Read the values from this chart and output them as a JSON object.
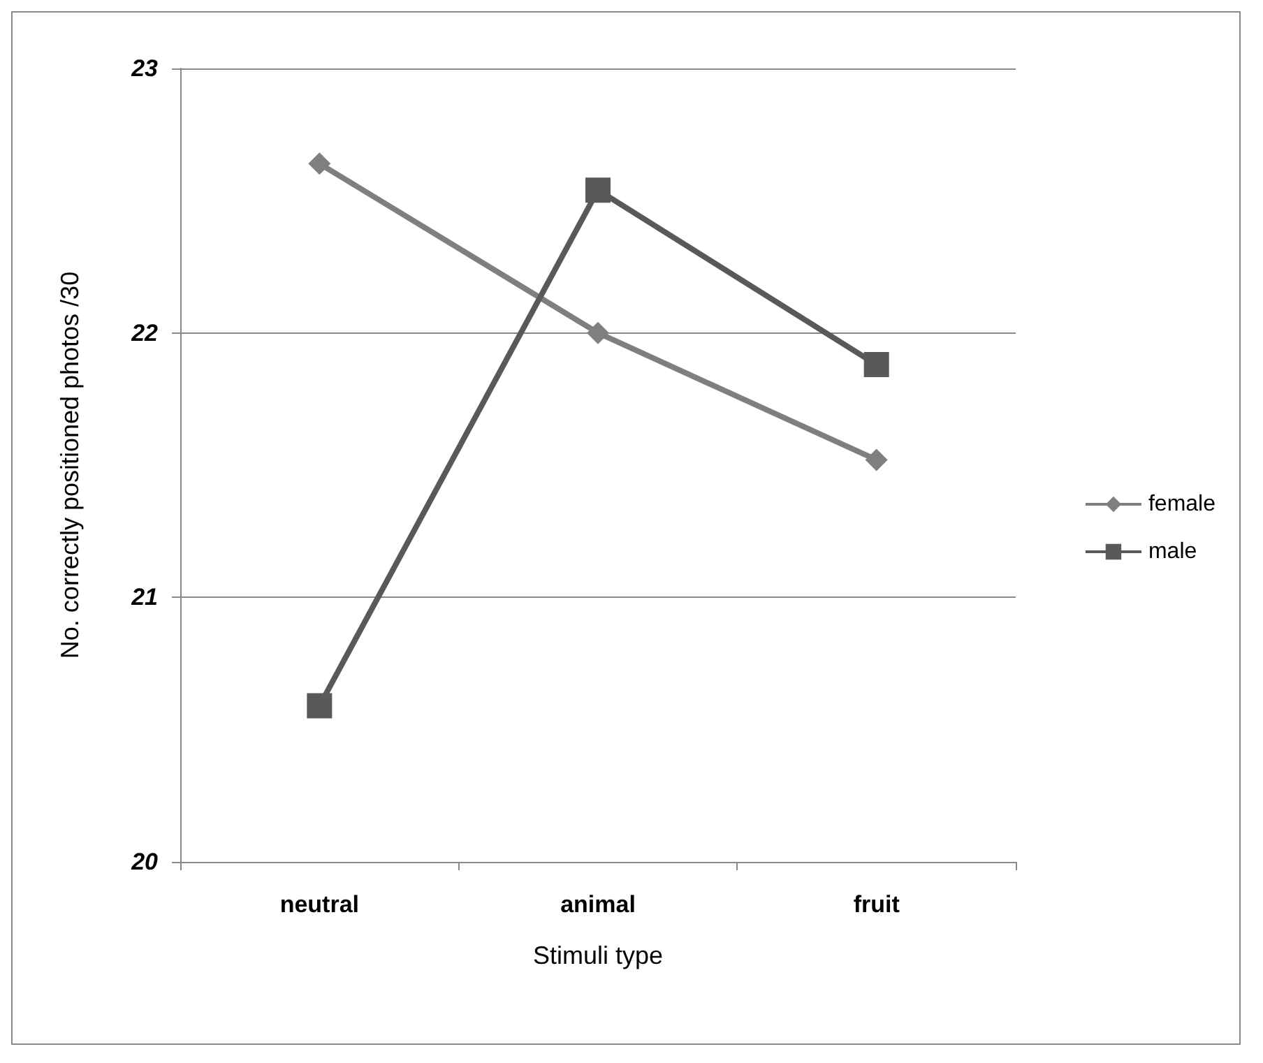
{
  "chart_data": {
    "type": "line",
    "xlabel": "Stimuli type",
    "ylabel": "No. correctly positioned photos /30",
    "categories": [
      "neutral",
      "animal",
      "fruit"
    ],
    "series": [
      {
        "name": "female",
        "color": "#7f7f7f",
        "marker": "diamond",
        "values": [
          22.64,
          22.0,
          21.52
        ]
      },
      {
        "name": "male",
        "color": "#595959",
        "marker": "square",
        "values": [
          20.59,
          22.54,
          21.88
        ]
      }
    ],
    "ylim": [
      20,
      23
    ],
    "yticks": [
      20,
      21,
      22,
      23
    ],
    "grid": "y",
    "legend": "right",
    "line_style": "solid"
  }
}
